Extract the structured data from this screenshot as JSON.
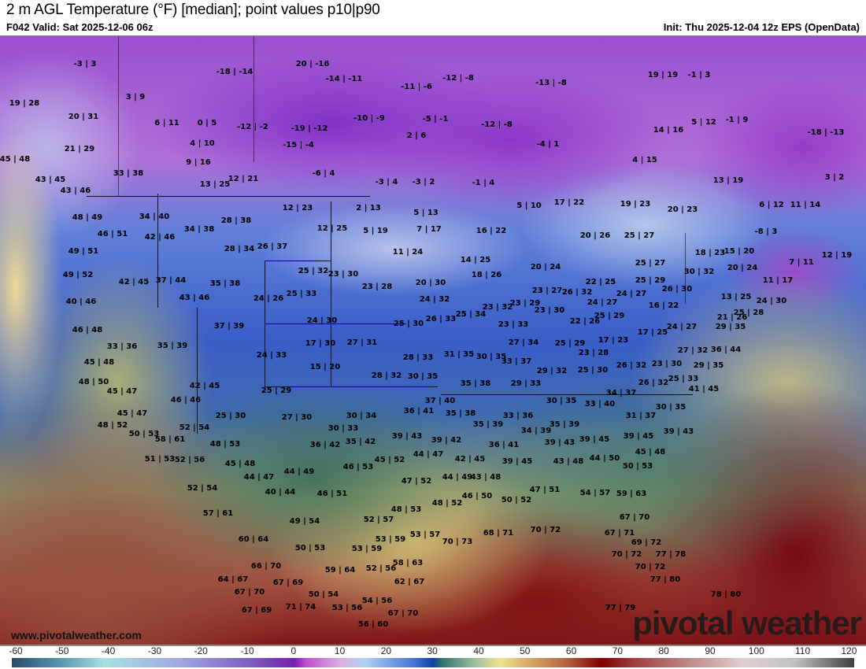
{
  "header": {
    "title": "2 m AGL Temperature (°F) [median]; point values p10|p90",
    "valid": "F042 Valid: Sat 2025-12-06 06z",
    "init": "Init: Thu 2025-12-04 12z EPS (OpenData)"
  },
  "footer": {
    "website": "www.pivotalweather.com",
    "brand": "pivotal weather"
  },
  "colorbar": {
    "ticks": [
      "-60",
      "-50",
      "-40",
      "-30",
      "-20",
      "-10",
      "0",
      "10",
      "20",
      "30",
      "40",
      "50",
      "60",
      "70",
      "80",
      "90",
      "100",
      "110",
      "120"
    ]
  },
  "points": [
    "-3 | 3",
    "-18 | -14",
    "20 | -16",
    "-14 | -11",
    "-12 | -8",
    "-13 | -8",
    "19 | 19",
    "-1 | 3",
    "-11 | -6",
    "3 | 9",
    "19 | 28",
    "6 | 11",
    "0 | 5",
    "-12 | -2",
    "-19 | -12",
    "-10 | -9",
    "-5 | -1",
    "-12 | -8",
    "5 | 12",
    "-1 | 9",
    "20 | 31",
    "14 | 16",
    "-18 | -13",
    "2 | 6",
    "4 | 10",
    "-15 | -4",
    "-4 | 1",
    "21 | 29",
    "9 | 16",
    "4 | 15",
    "45 | 48",
    "33 | 38",
    "-6 | 4",
    "43 | 45",
    "13 | 25",
    "12 | 21",
    "-3 | 4",
    "-3 | 2",
    "-1 | 4",
    "13 | 19",
    "3 | 2",
    "43 | 46",
    "17 | 22",
    "5 | 10",
    "19 | 23",
    "20 | 23",
    "6 | 12",
    "11 | 14",
    "12 | 23",
    "2 | 13",
    "5 | 13",
    "34 | 40",
    "48 | 49",
    "28 | 38",
    "12 | 25",
    "5 | 19",
    "7 | 17",
    "16 | 22",
    "20 | 26",
    "25 | 27",
    "-8 | 3",
    "46 | 51",
    "42 | 46",
    "34 | 38",
    "12 | 19",
    "28 | 34",
    "26 | 37",
    "49 | 51",
    "11 | 24",
    "15 | 20",
    "18 | 23",
    "14 | 25",
    "25 | 27",
    "7 | 11",
    "25 | 32",
    "23 | 30",
    "20 | 24",
    "49 | 52",
    "18 | 26",
    "20 | 24",
    "30 | 32",
    "42 | 45",
    "37 | 44",
    "35 | 38",
    "20 | 30",
    "22 | 25",
    "25 | 29",
    "11 | 17",
    "23 | 28",
    "26 | 30",
    "23 | 27",
    "26 | 32",
    "24 | 27",
    "43 | 46",
    "24 | 26",
    "25 | 33",
    "24 | 32",
    "40 | 46",
    "13 | 25",
    "24 | 30",
    "24 | 27",
    "16 | 22",
    "23 | 32",
    "23 | 29",
    "23 | 30",
    "25 | 34",
    "25 | 28",
    "26 | 33",
    "25 | 29",
    "24 | 30",
    "37 | 39",
    "46 | 48",
    "25 | 30",
    "23 | 33",
    "22 | 26",
    "24 | 27",
    "21 | 26",
    "29 | 35",
    "17 | 30",
    "27 | 31",
    "33 | 36",
    "35 | 39",
    "27 | 34",
    "25 | 29",
    "17 | 23",
    "17 | 25",
    "27 | 32",
    "36 | 44",
    "24 | 33",
    "28 | 33",
    "31 | 35",
    "30 | 35",
    "33 | 37",
    "23 | 28",
    "45 | 48",
    "15 | 20",
    "26 | 32",
    "23 | 30",
    "28 | 32",
    "30 | 35",
    "29 | 35",
    "29 | 32",
    "25 | 30",
    "48 | 50",
    "35 | 38",
    "29 | 33",
    "25 | 33",
    "26 | 32",
    "42 | 45",
    "25 | 29",
    "45 | 47",
    "41 | 45",
    "34 | 37",
    "46 | 46",
    "37 | 40",
    "30 | 35",
    "33 | 40",
    "31 | 37",
    "30 | 35",
    "45 | 47",
    "25 | 30",
    "30 | 34",
    "36 | 41",
    "35 | 38",
    "33 | 36",
    "27 | 30",
    "48 | 52",
    "52 | 54",
    "30 | 33",
    "35 | 39",
    "34 | 39",
    "35 | 39",
    "39 | 45",
    "39 | 43",
    "50 | 53",
    "58 | 61",
    "39 | 43",
    "39 | 42",
    "39 | 45",
    "39 | 43",
    "36 | 42",
    "35 | 42",
    "48 | 53",
    "36 | 41",
    "45 | 48",
    "45 | 52",
    "44 | 47",
    "42 | 45",
    "43 | 48",
    "44 | 50",
    "39 | 45",
    "51 | 53",
    "52 | 56",
    "45 | 48",
    "50 | 53",
    "46 | 53",
    "44 | 47",
    "44 | 49",
    "47 | 52",
    "44 | 49",
    "43 | 48",
    "52 | 54",
    "40 | 44",
    "46 | 51",
    "47 | 51",
    "54 | 57",
    "59 | 63",
    "48 | 53",
    "48 | 52",
    "46 | 50",
    "50 | 52",
    "57 | 61",
    "49 | 54",
    "52 | 57",
    "67 | 70",
    "53 | 57",
    "70 | 73",
    "68 | 71",
    "70 | 72",
    "53 | 59",
    "69 | 72",
    "60 | 64",
    "50 | 53",
    "67 | 71",
    "53 | 59",
    "70 | 72",
    "77 | 78",
    "58 | 63",
    "66 | 70",
    "59 | 64",
    "52 | 56",
    "70 | 72",
    "64 | 67",
    "67 | 69",
    "62 | 67",
    "77 | 80",
    "67 | 70",
    "50 | 54",
    "54 | 56",
    "78 | 80",
    "71 | 74",
    "53 | 56",
    "67 | 70",
    "67 | 69",
    "77 | 79",
    "56 | 60"
  ]
}
